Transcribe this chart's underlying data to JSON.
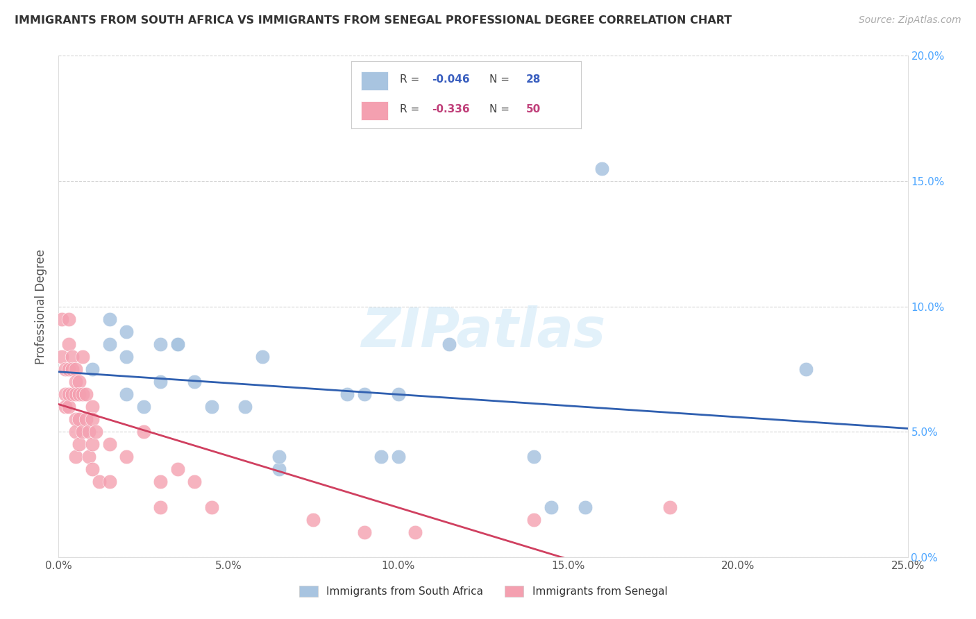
{
  "title": "IMMIGRANTS FROM SOUTH AFRICA VS IMMIGRANTS FROM SENEGAL PROFESSIONAL DEGREE CORRELATION CHART",
  "source": "Source: ZipAtlas.com",
  "ylabel": "Professional Degree",
  "xlim": [
    0,
    0.25
  ],
  "ylim": [
    0,
    0.2
  ],
  "xticks": [
    0.0,
    0.05,
    0.1,
    0.15,
    0.2,
    0.25
  ],
  "yticks": [
    0.0,
    0.05,
    0.1,
    0.15,
    0.2
  ],
  "blue_label": "Immigrants from South Africa",
  "pink_label": "Immigrants from Senegal",
  "blue_R": -0.046,
  "blue_N": 28,
  "pink_R": -0.336,
  "pink_N": 50,
  "blue_color": "#a8c4e0",
  "pink_color": "#f4a0b0",
  "blue_line_color": "#3060b0",
  "pink_line_color": "#d04060",
  "blue_num_color": "#3a5fbf",
  "pink_num_color": "#c0407a",
  "watermark_color": "#d0e8f8",
  "blue_x": [
    0.01,
    0.015,
    0.015,
    0.02,
    0.02,
    0.02,
    0.025,
    0.03,
    0.03,
    0.035,
    0.035,
    0.04,
    0.045,
    0.055,
    0.06,
    0.065,
    0.065,
    0.085,
    0.09,
    0.095,
    0.1,
    0.1,
    0.115,
    0.14,
    0.145,
    0.155,
    0.16,
    0.22
  ],
  "blue_y": [
    0.075,
    0.095,
    0.085,
    0.09,
    0.08,
    0.065,
    0.06,
    0.085,
    0.07,
    0.085,
    0.085,
    0.07,
    0.06,
    0.06,
    0.08,
    0.035,
    0.04,
    0.065,
    0.065,
    0.04,
    0.065,
    0.04,
    0.085,
    0.04,
    0.02,
    0.02,
    0.155,
    0.075
  ],
  "pink_x": [
    0.001,
    0.001,
    0.002,
    0.002,
    0.002,
    0.003,
    0.003,
    0.003,
    0.003,
    0.003,
    0.004,
    0.004,
    0.004,
    0.005,
    0.005,
    0.005,
    0.005,
    0.005,
    0.005,
    0.006,
    0.006,
    0.006,
    0.006,
    0.007,
    0.007,
    0.007,
    0.008,
    0.008,
    0.009,
    0.009,
    0.01,
    0.01,
    0.01,
    0.01,
    0.011,
    0.012,
    0.015,
    0.015,
    0.02,
    0.025,
    0.03,
    0.03,
    0.035,
    0.04,
    0.045,
    0.075,
    0.09,
    0.105,
    0.14,
    0.18
  ],
  "pink_y": [
    0.095,
    0.08,
    0.075,
    0.065,
    0.06,
    0.095,
    0.085,
    0.075,
    0.065,
    0.06,
    0.08,
    0.075,
    0.065,
    0.075,
    0.07,
    0.065,
    0.055,
    0.05,
    0.04,
    0.07,
    0.065,
    0.055,
    0.045,
    0.08,
    0.065,
    0.05,
    0.065,
    0.055,
    0.05,
    0.04,
    0.06,
    0.055,
    0.045,
    0.035,
    0.05,
    0.03,
    0.045,
    0.03,
    0.04,
    0.05,
    0.03,
    0.02,
    0.035,
    0.03,
    0.02,
    0.015,
    0.01,
    0.01,
    0.015,
    0.02
  ],
  "background_color": "#ffffff",
  "grid_color": "#cccccc",
  "title_color": "#333333",
  "axis_tick_color": "#4da6ff"
}
